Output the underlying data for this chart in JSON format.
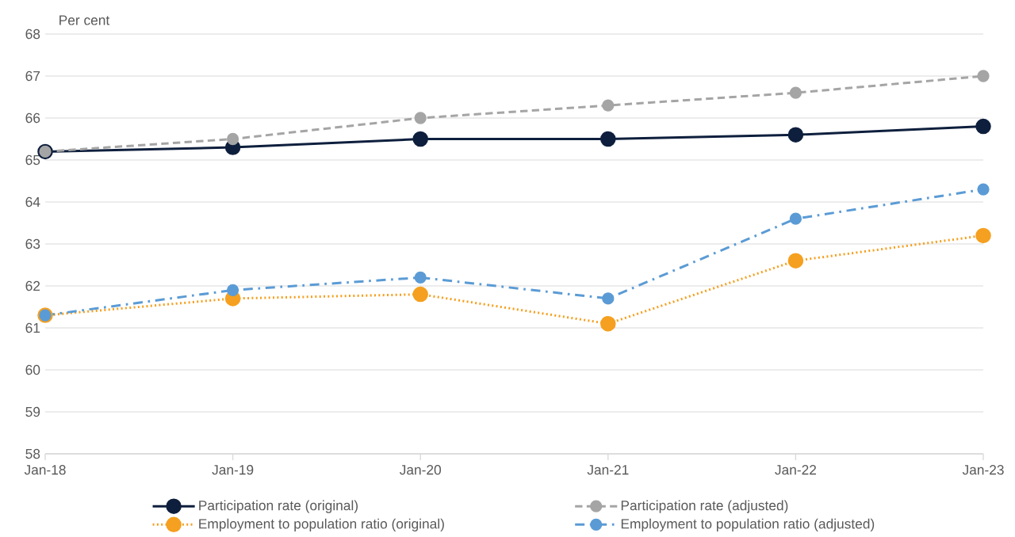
{
  "chart_data": {
    "type": "line",
    "ylabel": "Per cent",
    "categories": [
      "Jan-18",
      "Jan-19",
      "Jan-20",
      "Jan-21",
      "Jan-22",
      "Jan-23"
    ],
    "series": [
      {
        "name": "Participation rate (original)",
        "color": "#0e1f3d",
        "line_style": "solid",
        "values": [
          65.2,
          65.3,
          65.5,
          65.5,
          65.6,
          65.8
        ]
      },
      {
        "name": "Participation rate (adjusted)",
        "color": "#a5a5a5",
        "line_style": "dashed",
        "values": [
          65.2,
          65.5,
          66.0,
          66.3,
          66.6,
          67.0
        ]
      },
      {
        "name": "Employment to population ratio (original)",
        "color": "#f5a020",
        "line_style": "dotted",
        "values": [
          61.3,
          61.7,
          61.8,
          61.1,
          62.6,
          63.2
        ]
      },
      {
        "name": "Employment to population ratio (adjusted)",
        "color": "#5b9bd5",
        "line_style": "dashdot",
        "values": [
          61.3,
          61.9,
          62.2,
          61.7,
          63.6,
          64.3
        ]
      }
    ],
    "ylim": [
      58,
      68
    ],
    "yticks": [
      58,
      59,
      60,
      61,
      62,
      63,
      64,
      65,
      66,
      67,
      68
    ],
    "grid": "y",
    "legend": "bottom",
    "marker": "circle"
  }
}
